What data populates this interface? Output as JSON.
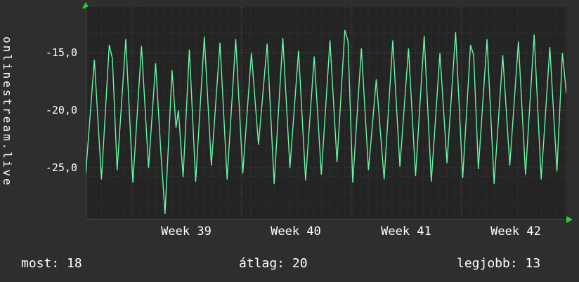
{
  "side_label": "onlinestream.live",
  "stats": {
    "most": "most: 18",
    "atlag": "átlag: 20",
    "legjobb": "legjobb: 13"
  },
  "colors": {
    "background": "#2e2e2e",
    "plot_background": "#242424",
    "line": "#66f7a3",
    "arrow": "#2ecc2e",
    "text": "#ffffff",
    "grid_major": "#444444",
    "grid_minor": "#383838",
    "week_line": "#8a4040",
    "axis_line": "#4a4a4a"
  },
  "chart_data": {
    "type": "line",
    "title": "",
    "xlabel": "",
    "ylabel": "onlinestream.live",
    "x_unit": "days",
    "x_range": [
      0,
      30.6
    ],
    "ylim": [
      -29.5,
      -11
    ],
    "yticks": [
      -15,
      -20,
      -25
    ],
    "ytick_labels": [
      "-15,0",
      "-20,0",
      "-25,0"
    ],
    "y_minor_step": 2.5,
    "x_grid_step_days": 0.5,
    "xtick_labels": [
      "Week 39",
      "Week 40",
      "Week 41",
      "Week 42"
    ],
    "xtick_positions_days": [
      6.4,
      13.4,
      20.4,
      27.4
    ],
    "week_boundaries_days": [
      2.9,
      9.9,
      16.9,
      23.9
    ],
    "grid": true,
    "legend": "none",
    "summary": {
      "most": 18,
      "atlag": 20,
      "legjobb": 13
    },
    "series": [
      {
        "color": "#66f7a3",
        "points": [
          [
            0,
            -25.5
          ],
          [
            0.55,
            -15.6
          ],
          [
            1,
            -26
          ],
          [
            1.5,
            -14.3
          ],
          [
            1.7,
            -15.5
          ],
          [
            2,
            -25.2
          ],
          [
            2.55,
            -13.8
          ],
          [
            3,
            -26.3
          ],
          [
            3.55,
            -14.4
          ],
          [
            4,
            -25
          ],
          [
            4.45,
            -15.9
          ],
          [
            4.8,
            -24
          ],
          [
            5.05,
            -29
          ],
          [
            5.5,
            -16.5
          ],
          [
            5.75,
            -21.5
          ],
          [
            5.9,
            -20
          ],
          [
            6.2,
            -25.8
          ],
          [
            6.6,
            -14.7
          ],
          [
            7,
            -26.2
          ],
          [
            7.55,
            -13.6
          ],
          [
            8,
            -24.8
          ],
          [
            8.55,
            -14.1
          ],
          [
            9,
            -26
          ],
          [
            9.55,
            -13.8
          ],
          [
            10,
            -25.5
          ],
          [
            10.55,
            -15
          ],
          [
            11,
            -23
          ],
          [
            11.55,
            -14.2
          ],
          [
            12,
            -26.4
          ],
          [
            12.55,
            -13.7
          ],
          [
            13,
            -25
          ],
          [
            13.55,
            -14.8
          ],
          [
            14,
            -26.1
          ],
          [
            14.55,
            -15.3
          ],
          [
            15,
            -25.6
          ],
          [
            15.55,
            -13.9
          ],
          [
            16,
            -24.5
          ],
          [
            16.5,
            -13
          ],
          [
            16.7,
            -14
          ],
          [
            17,
            -26.3
          ],
          [
            17.55,
            -14.6
          ],
          [
            18,
            -25.2
          ],
          [
            18.5,
            -17.3
          ],
          [
            19,
            -26
          ],
          [
            19.55,
            -13.9
          ],
          [
            20,
            -24.9
          ],
          [
            20.55,
            -14.6
          ],
          [
            21,
            -25.7
          ],
          [
            21.55,
            -13.5
          ],
          [
            22,
            -26.2
          ],
          [
            22.55,
            -15
          ],
          [
            23,
            -24.6
          ],
          [
            23.55,
            -13.2
          ],
          [
            24,
            -25.9
          ],
          [
            24.5,
            -14.3
          ],
          [
            24.7,
            -15.2
          ],
          [
            25,
            -25.1
          ],
          [
            25.55,
            -13.8
          ],
          [
            26,
            -26.4
          ],
          [
            26.55,
            -15.2
          ],
          [
            27,
            -24.8
          ],
          [
            27.55,
            -14
          ],
          [
            28,
            -25.6
          ],
          [
            28.55,
            -13.4
          ],
          [
            29,
            -26
          ],
          [
            29.55,
            -14.5
          ],
          [
            30,
            -25.3
          ],
          [
            30.35,
            -15
          ],
          [
            30.6,
            -18.5
          ]
        ]
      }
    ]
  }
}
